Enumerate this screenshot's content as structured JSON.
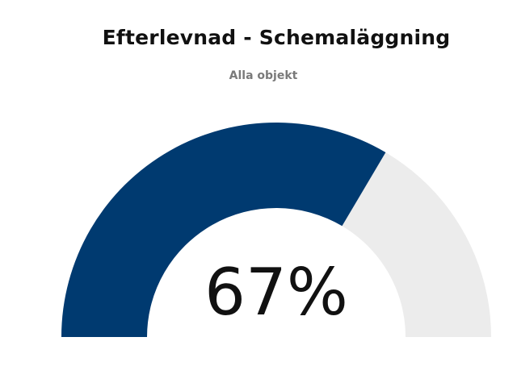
{
  "chart_data": {
    "type": "gauge",
    "title": "Efterlevnad - Schemaläggning",
    "subtitle": "Alla objekt",
    "value": 67,
    "min": 0,
    "max": 100,
    "value_label": "67%",
    "colors": {
      "filled": "#003a70",
      "track": "#ececec",
      "text": "#111111",
      "subtitle": "#7a7a7a"
    }
  }
}
